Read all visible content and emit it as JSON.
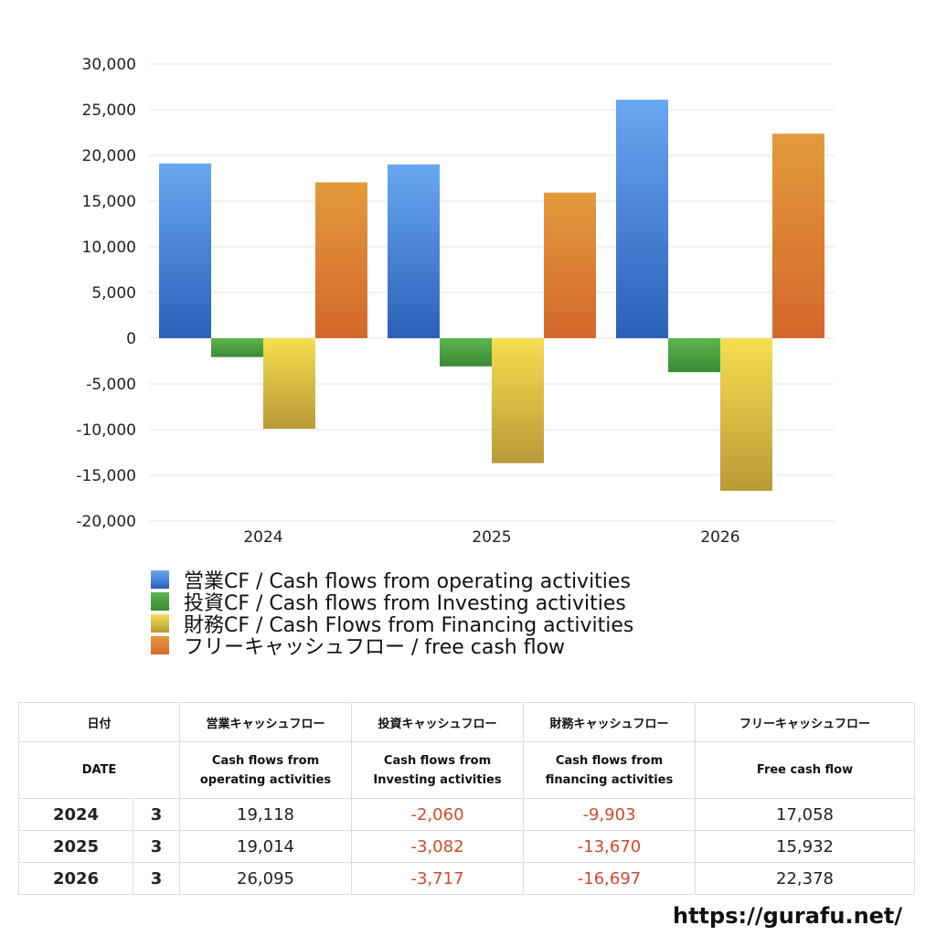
{
  "chart_data": {
    "type": "bar",
    "categories": [
      "2024",
      "2025",
      "2026"
    ],
    "series": [
      {
        "name": "営業CF / Cash flows from operating activities",
        "values": [
          19118,
          19014,
          26095
        ],
        "color_top": "#6aa7f2",
        "color_bottom": "#2b5fb8"
      },
      {
        "name": "投資CF / Cash flows from Investing activities",
        "values": [
          -2060,
          -3082,
          -3717
        ],
        "color_top": "#5db550",
        "color_bottom": "#3a8c34"
      },
      {
        "name": "財務CF / Cash Flows from Financing activities",
        "values": [
          -9903,
          -13670,
          -16697
        ],
        "color_top": "#f5df50",
        "color_bottom": "#b89a36"
      },
      {
        "name": "フリーキャッシュフロー / free cash flow",
        "values": [
          17058,
          15932,
          22378
        ],
        "color_top": "#e39b3c",
        "color_bottom": "#d4672c"
      }
    ],
    "ylim": [
      -20000,
      30000
    ],
    "yticks": [
      30000,
      25000,
      20000,
      15000,
      10000,
      5000,
      0,
      -5000,
      -10000,
      -15000,
      -20000
    ],
    "ytick_labels": [
      "30,000",
      "25,000",
      "20,000",
      "15,000",
      "10,000",
      "5,000",
      "0",
      "-5,000",
      "-10,000",
      "-15,000",
      "-20,000"
    ],
    "grid": true,
    "legend_position": "bottom-left"
  },
  "legend": [
    {
      "label": "営業CF / Cash flows from operating activities"
    },
    {
      "label": "投資CF / Cash flows from Investing activities"
    },
    {
      "label": "財務CF / Cash Flows from Financing activities"
    },
    {
      "label": "フリーキャッシュフロー / free cash flow"
    }
  ],
  "table": {
    "head_jp": {
      "date": "日付",
      "op": "営業キャッシュフロー",
      "inv": "投資キャッシュフロー",
      "fin": "財務キャッシュフロー",
      "free": "フリーキャッシュフロー"
    },
    "head_en": {
      "date": "DATE",
      "op_1": "Cash flows from",
      "op_2": "operating activities",
      "inv_1": "Cash flows from",
      "inv_2": "Investing activities",
      "fin_1": "Cash flows from",
      "fin_2": "financing activities",
      "free": "Free cash flow"
    },
    "rows": [
      {
        "year": "2024",
        "month": "3",
        "op": "19,118",
        "inv": "-2,060",
        "fin": "-9,903",
        "free": "17,058"
      },
      {
        "year": "2025",
        "month": "3",
        "op": "19,014",
        "inv": "-3,082",
        "fin": "-13,670",
        "free": "15,932"
      },
      {
        "year": "2026",
        "month": "3",
        "op": "26,095",
        "inv": "-3,717",
        "fin": "-16,697",
        "free": "22,378"
      }
    ]
  },
  "site_url": "https://gurafu.net/"
}
